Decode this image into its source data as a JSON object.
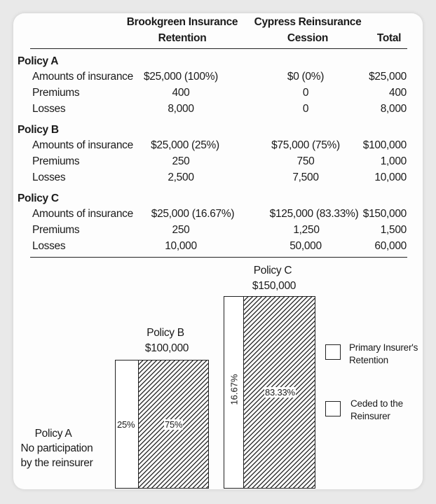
{
  "header": {
    "brookgreen_line1": "Brookgreen Insurance",
    "brookgreen_line2": "Retention",
    "cypress_line1": "Cypress Reinsurance",
    "cypress_line2": "Cession",
    "total": "Total"
  },
  "policies": [
    {
      "title": "Policy A",
      "rows": [
        {
          "label": "Amounts of insurance",
          "retention": "$25,000 (100%)",
          "cession": "$0 (0%)",
          "total": "$25,000"
        },
        {
          "label": "Premiums",
          "retention": "400",
          "cession": "0",
          "total": "400"
        },
        {
          "label": "Losses",
          "retention": "8,000",
          "cession": "0",
          "total": "8,000"
        }
      ]
    },
    {
      "title": "Policy B",
      "rows": [
        {
          "label": "Amounts of insurance",
          "retention": "$25,000 (25%)",
          "cession": "$75,000 (75%)",
          "total": "$100,000"
        },
        {
          "label": "Premiums",
          "retention": "250",
          "cession": "750",
          "total": "1,000"
        },
        {
          "label": "Losses",
          "retention": "2,500",
          "cession": "7,500",
          "total": "10,000"
        }
      ]
    },
    {
      "title": "Policy C",
      "rows": [
        {
          "label": "Amounts of insurance",
          "retention": "$25,000 (16.67%)",
          "cession": "$125,000 (83.33%)",
          "total": "$150,000"
        },
        {
          "label": "Premiums",
          "retention": "250",
          "cession": "1,250",
          "total": "1,500"
        },
        {
          "label": "Losses",
          "retention": "10,000",
          "cession": "50,000",
          "total": "60,000"
        }
      ]
    }
  ],
  "diagram": {
    "policy_a": {
      "line1": "Policy A",
      "line2": "No participation",
      "line3": "by the reinsurer"
    },
    "policy_b": {
      "line1": "Policy B",
      "line2": "$100,000",
      "retained_pct": "25%",
      "ceded_pct": "75%",
      "total_amount": 100000,
      "retained_fraction": 0.25
    },
    "policy_c": {
      "line1": "Policy C",
      "line2": "$150,000",
      "retained_pct": "16.67%",
      "ceded_pct": "83.33%",
      "total_amount": 150000,
      "retained_fraction": 0.1667
    },
    "legend": {
      "retention_line1": "Primary Insurer's",
      "retention_line2": "Retention",
      "ceded_line1": "Ceded to the",
      "ceded_line2": "Reinsurer"
    }
  }
}
